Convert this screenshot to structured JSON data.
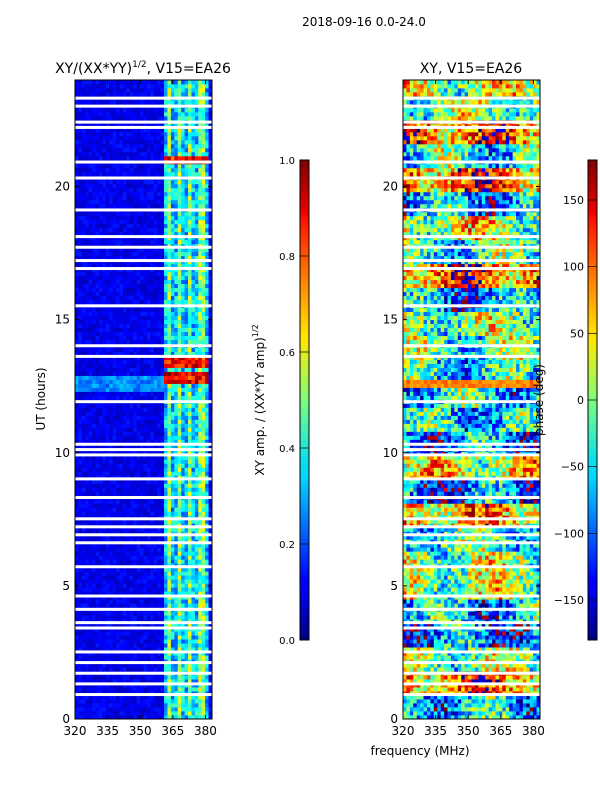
{
  "suptitle": "2018-09-16 0.0-24.0",
  "common_xlabel": "frequency (MHz)",
  "chart_data": [
    {
      "type": "heatmap",
      "title_base": "XY/(XX*YY)",
      "title_sup": "1/2",
      "title_suffix": ", V15=EA26",
      "xlabel": "",
      "ylabel": "UT (hours)",
      "xlim": [
        320,
        383
      ],
      "ylim": [
        0,
        24
      ],
      "xticks": [
        "320",
        "335",
        "350",
        "365",
        "380"
      ],
      "xtick_values": [
        320,
        335,
        350,
        365,
        380
      ],
      "yticks": [
        "0",
        "5",
        "10",
        "15",
        "20"
      ],
      "ytick_values": [
        0,
        5,
        10,
        15,
        20
      ],
      "colorbar": {
        "label_base": "XY amp. / (XX*YY amp)",
        "label_sup": "1/2",
        "range": [
          0.0,
          1.0
        ],
        "ticks": [
          "0.0",
          "0.2",
          "0.4",
          "0.6",
          "0.8",
          "1.0"
        ],
        "tick_values": [
          0.0,
          0.2,
          0.4,
          0.6,
          0.8,
          1.0
        ],
        "colormap": "jet"
      },
      "typical_value": 0.1,
      "active_band_mhz": [
        361,
        381
      ],
      "bright_channels_mhz": [
        363,
        368,
        373,
        378
      ],
      "hot_times_hours": [
        12.8,
        13.4,
        21.0
      ],
      "gap_times_hours": [
        0.9,
        1.3,
        1.7,
        2.1,
        2.5,
        3.4,
        3.6,
        4.1,
        4.6,
        5.7,
        6.6,
        6.9,
        7.2,
        7.5,
        8.3,
        9.0,
        9.9,
        10.1,
        10.3,
        11.9,
        13.6,
        14.0,
        15.5,
        16.9,
        17.2,
        17.7,
        18.1,
        19.1,
        20.3,
        20.9,
        22.2,
        22.4,
        23.0,
        23.3
      ]
    },
    {
      "type": "heatmap",
      "title": "XY, V15=EA26",
      "xlabel": "frequency (MHz)",
      "ylabel": "",
      "xlim": [
        320,
        383
      ],
      "ylim": [
        0,
        24
      ],
      "xticks": [
        "320",
        "335",
        "350",
        "365",
        "380"
      ],
      "xtick_values": [
        320,
        335,
        350,
        365,
        380
      ],
      "yticks": [
        "0",
        "5",
        "10",
        "15",
        "20"
      ],
      "ytick_values": [
        0,
        5,
        10,
        15,
        20
      ],
      "colorbar": {
        "label": "phase (deg)",
        "range": [
          -180,
          180
        ],
        "ticks": [
          "150",
          "100",
          "50",
          "0",
          "−50",
          "−100",
          "−150"
        ],
        "tick_values": [
          150,
          100,
          50,
          0,
          -50,
          -100,
          -150
        ],
        "colormap": "jet"
      },
      "typical_value": "random phase",
      "gap_times_hours": [
        0.9,
        1.3,
        1.7,
        2.1,
        2.5,
        3.4,
        3.6,
        4.1,
        4.6,
        5.7,
        6.6,
        6.9,
        7.2,
        7.5,
        8.3,
        9.0,
        9.9,
        10.1,
        10.3,
        11.9,
        13.6,
        14.0,
        15.5,
        16.9,
        17.2,
        17.7,
        18.1,
        19.1,
        20.3,
        20.9,
        22.2,
        22.4,
        23.0,
        23.3
      ]
    }
  ]
}
